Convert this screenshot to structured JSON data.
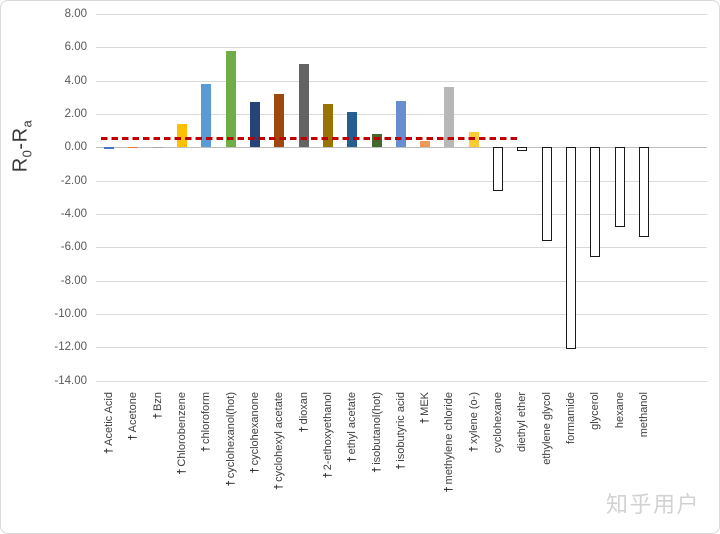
{
  "watermark": "知乎用户",
  "chart_data": {
    "type": "bar",
    "title": "",
    "xlabel": "",
    "ylabel_plain": "R0-Ra",
    "ylabel_rich": {
      "base1": "R",
      "sub1": "0",
      "dash": "-",
      "base2": "R",
      "sub2": "a"
    },
    "ylim": [
      -14,
      8
    ],
    "grid": true,
    "legend": "none",
    "marker_glyph": "†",
    "outline_fill": "#FFFFFF",
    "outline_stroke": "#1A1A1A",
    "yticks": [
      {
        "value": 8,
        "label": "8.00"
      },
      {
        "value": 6,
        "label": "6.00"
      },
      {
        "value": 4,
        "label": "4.00"
      },
      {
        "value": 2,
        "label": "2.00"
      },
      {
        "value": 0,
        "label": "0.00"
      },
      {
        "value": -2,
        "label": "-2.00"
      },
      {
        "value": -4,
        "label": "-4.00"
      },
      {
        "value": -6,
        "label": "-6.00"
      },
      {
        "value": -8,
        "label": "-8.00"
      },
      {
        "value": -10,
        "label": "-10.00"
      },
      {
        "value": -12,
        "label": "-12.00"
      },
      {
        "value": -14,
        "label": "-14.00"
      }
    ],
    "reference_line": {
      "value": 0.5,
      "color": "#C00000",
      "style": "dashed",
      "spans_categories": "Acetic Acid through cyclohexane"
    },
    "categories": [
      {
        "label": "Acetic Acid",
        "value": -0.1,
        "color": "#4472C4",
        "outlined": false,
        "marked": true
      },
      {
        "label": "Acetone",
        "value": -0.05,
        "color": "#ED7D31",
        "outlined": false,
        "marked": true
      },
      {
        "label": "Bzn",
        "value": -0.05,
        "color": "#A5A5A5",
        "outlined": false,
        "marked": true
      },
      {
        "label": "Chlorobenzene",
        "value": 1.4,
        "color": "#FFC000",
        "outlined": false,
        "marked": true
      },
      {
        "label": "chloroform",
        "value": 3.8,
        "color": "#5B9BD5",
        "outlined": false,
        "marked": true
      },
      {
        "label": "cyclohexanol(hot)",
        "value": 5.8,
        "color": "#70AD47",
        "outlined": false,
        "marked": true
      },
      {
        "label": "cyclohexanone",
        "value": 2.7,
        "color": "#264478",
        "outlined": false,
        "marked": true
      },
      {
        "label": "cyclohexyl acetate",
        "value": 3.2,
        "color": "#9E480E",
        "outlined": false,
        "marked": true
      },
      {
        "label": "dioxan",
        "value": 5.0,
        "color": "#636363",
        "outlined": false,
        "marked": true
      },
      {
        "label": "2-ethoxyethanol",
        "value": 2.6,
        "color": "#997300",
        "outlined": false,
        "marked": true
      },
      {
        "label": "ethyl acetate",
        "value": 2.1,
        "color": "#255E91",
        "outlined": false,
        "marked": true
      },
      {
        "label": "isobutanol(hot)",
        "value": 0.8,
        "color": "#43682B",
        "outlined": false,
        "marked": true
      },
      {
        "label": "isobutyric acid",
        "value": 2.8,
        "color": "#698ED0",
        "outlined": false,
        "marked": true
      },
      {
        "label": "MEK",
        "value": 0.4,
        "color": "#F1975A",
        "outlined": false,
        "marked": true
      },
      {
        "label": "methylene chloride",
        "value": 3.6,
        "color": "#B7B7B7",
        "outlined": false,
        "marked": true
      },
      {
        "label": "xylene (o-)",
        "value": 0.9,
        "color": "#FFCD33",
        "outlined": false,
        "marked": true
      },
      {
        "label": "cyclohexane",
        "value": -2.6,
        "color": "#FFFFFF",
        "outlined": true,
        "marked": false
      },
      {
        "label": "diethyl ether",
        "value": -0.2,
        "color": "#FFFFFF",
        "outlined": true,
        "marked": false
      },
      {
        "label": "ethylene glycol",
        "value": -5.6,
        "color": "#FFFFFF",
        "outlined": true,
        "marked": false
      },
      {
        "label": "formamide",
        "value": -12.1,
        "color": "#FFFFFF",
        "outlined": true,
        "marked": false
      },
      {
        "label": "glycerol",
        "value": -6.6,
        "color": "#FFFFFF",
        "outlined": true,
        "marked": false
      },
      {
        "label": "hexane",
        "value": -4.8,
        "color": "#FFFFFF",
        "outlined": true,
        "marked": false
      },
      {
        "label": "methanol",
        "value": -5.4,
        "color": "#FFFFFF",
        "outlined": true,
        "marked": false
      }
    ]
  }
}
